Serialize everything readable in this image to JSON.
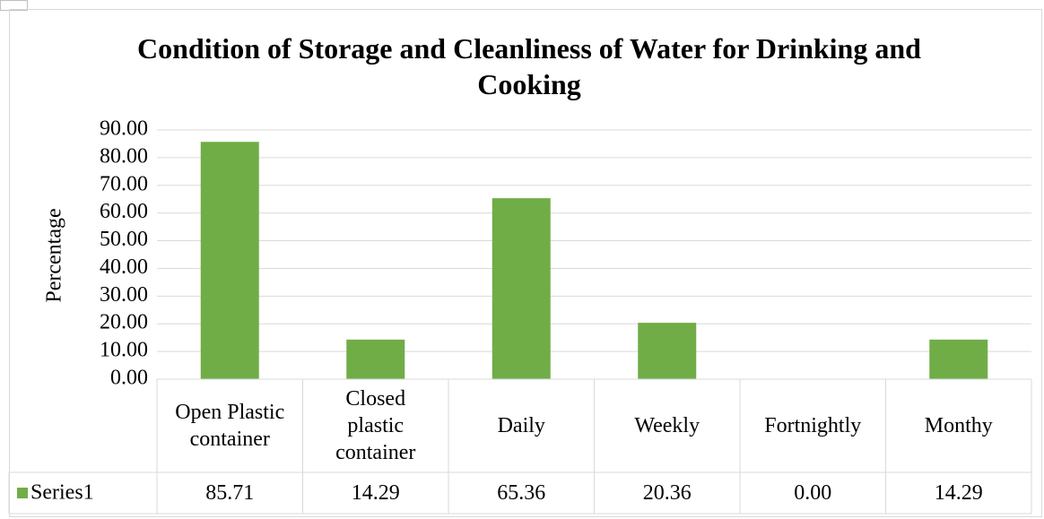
{
  "chart_data": {
    "type": "bar",
    "title": "Condition of Storage and Cleanliness of Water for Drinking and Cooking",
    "y_label": "Percentage",
    "categories": [
      "Open Plastic container",
      "Closed plastic container",
      "Daily",
      "Weekly",
      "Fortnightly",
      "Monthy"
    ],
    "series": [
      {
        "name": "Series1",
        "color": "#70ad47",
        "values": [
          85.71,
          14.29,
          65.36,
          20.36,
          0,
          14.29
        ],
        "value_labels": [
          "85.71",
          "14.29",
          "65.36",
          "20.36",
          "0.00",
          "14.29"
        ]
      }
    ],
    "ylim": [
      0,
      90
    ],
    "yticks": [
      {
        "value": 0,
        "label": "0.00"
      },
      {
        "value": 10,
        "label": "10.00"
      },
      {
        "value": 20,
        "label": "20.00"
      },
      {
        "value": 30,
        "label": "30.00"
      },
      {
        "value": 40,
        "label": "40.00"
      },
      {
        "value": 50,
        "label": "50.00"
      },
      {
        "value": 60,
        "label": "60.00"
      },
      {
        "value": 70,
        "label": "70.00"
      },
      {
        "value": 80,
        "label": "80.00"
      },
      {
        "value": 90,
        "label": "90.00"
      }
    ],
    "grid": true,
    "data_table": true
  }
}
